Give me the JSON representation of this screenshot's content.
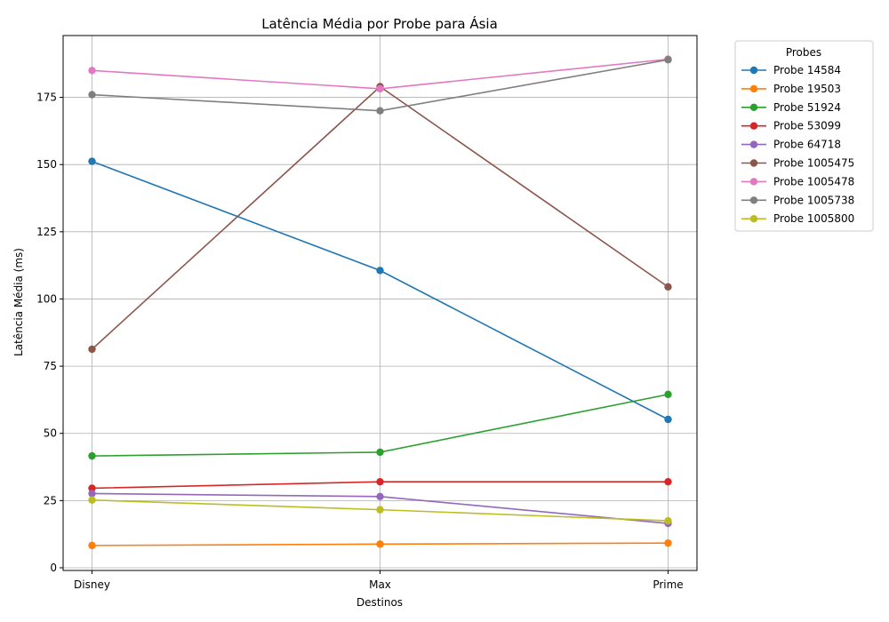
{
  "chart_data": {
    "type": "line",
    "title": "Latência Média por Probe para Ásia",
    "xlabel": "Destinos",
    "ylabel": "Latência Média (ms)",
    "categories": [
      "Disney",
      "Max",
      "Prime"
    ],
    "ylim": [
      -1,
      198
    ],
    "yticks": [
      0,
      25,
      50,
      75,
      100,
      125,
      150,
      175
    ],
    "grid": true,
    "legend": {
      "title": "Probes",
      "placement": "outside-top-right"
    },
    "series": [
      {
        "name": "Probe 14584",
        "color": "#1f77b4",
        "values": [
          151.2,
          110.6,
          55.2
        ]
      },
      {
        "name": "Probe 19503",
        "color": "#ff7f0e",
        "values": [
          8.3,
          8.8,
          9.2
        ]
      },
      {
        "name": "Probe 51924",
        "color": "#2ca02c",
        "values": [
          41.6,
          43.0,
          64.5
        ]
      },
      {
        "name": "Probe 53099",
        "color": "#d62728",
        "values": [
          29.6,
          32.0,
          32.0
        ]
      },
      {
        "name": "Probe 64718",
        "color": "#9467bd",
        "values": [
          27.6,
          26.5,
          16.5
        ]
      },
      {
        "name": "Probe 1005475",
        "color": "#8c564b",
        "values": [
          81.3,
          179.0,
          104.5
        ]
      },
      {
        "name": "Probe 1005478",
        "color": "#e377c2",
        "values": [
          185.0,
          178.2,
          189.2
        ]
      },
      {
        "name": "Probe 1005738",
        "color": "#7f7f7f",
        "values": [
          176.0,
          170.0,
          189.0
        ]
      },
      {
        "name": "Probe 1005800",
        "color": "#bcbd22",
        "values": [
          25.2,
          21.6,
          17.5
        ]
      }
    ]
  }
}
